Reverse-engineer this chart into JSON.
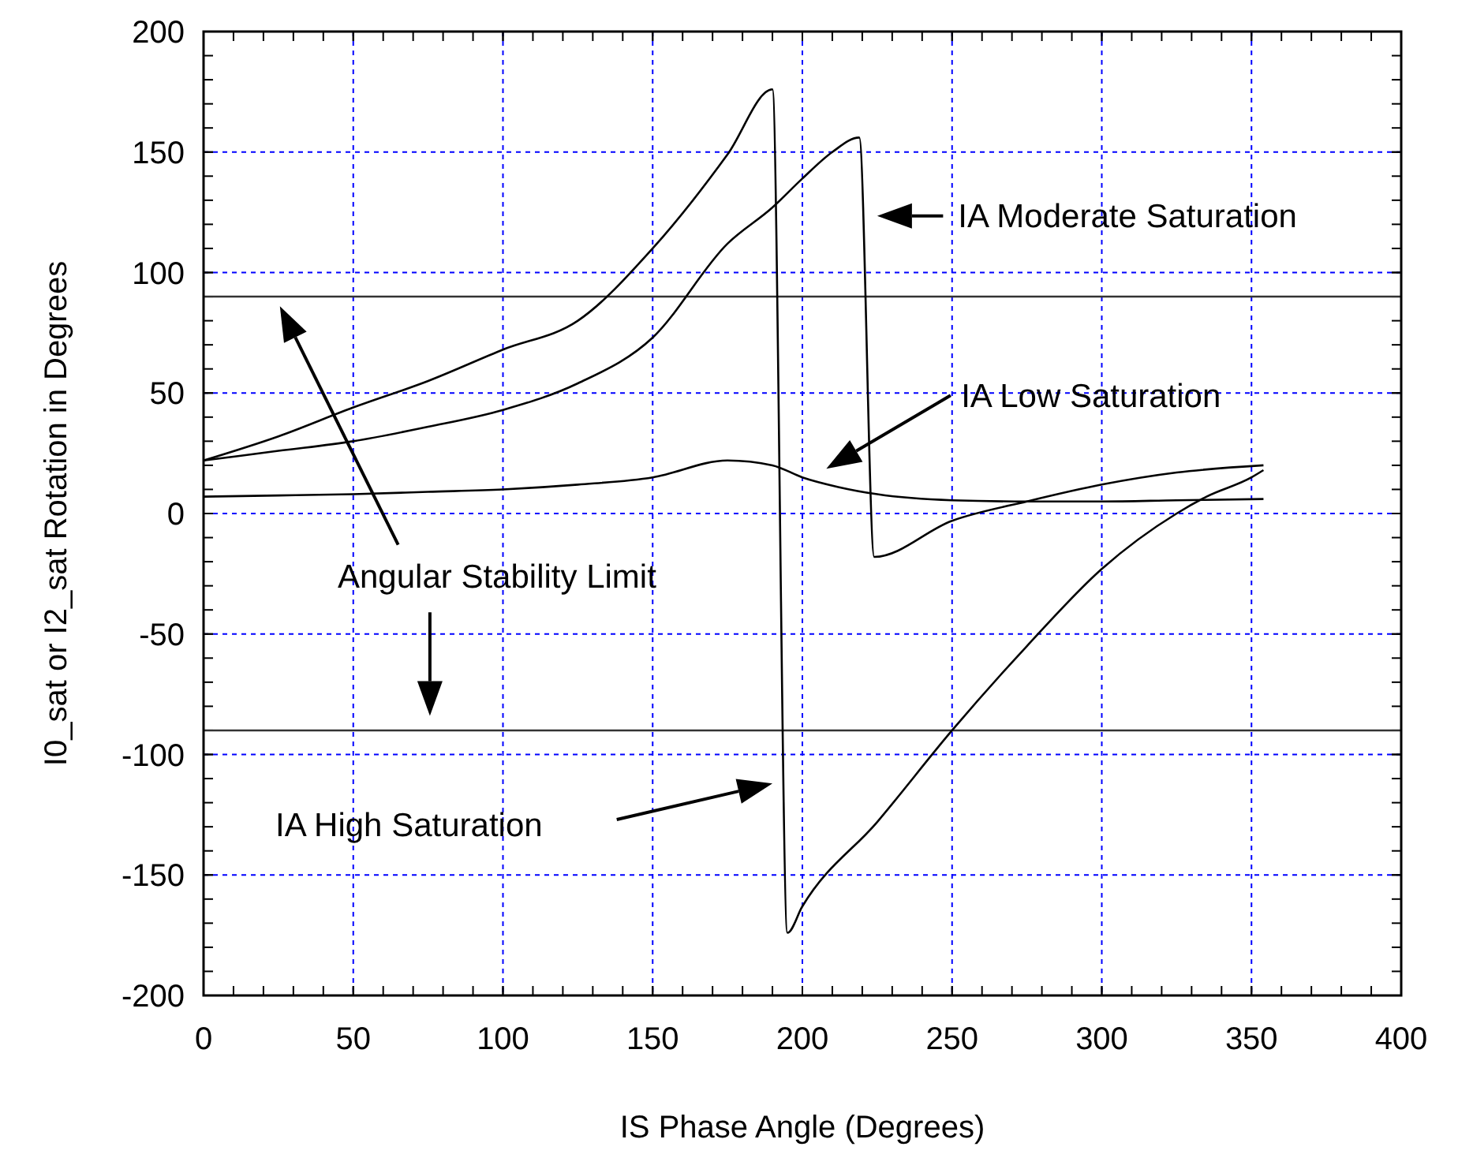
{
  "chart_data": {
    "type": "line",
    "xlabel": "IS Phase Angle (Degrees)",
    "ylabel": "I0_sat or I2_sat Rotation in Degrees",
    "xlim": [
      0,
      400
    ],
    "xticks": [
      0,
      50,
      100,
      150,
      200,
      250,
      300,
      350,
      400
    ],
    "ylim": [
      -200,
      200
    ],
    "yticks": [
      -200,
      -150,
      -100,
      -50,
      0,
      50,
      100,
      150,
      200
    ],
    "grid": true,
    "series": [
      {
        "color": "#000000",
        "x": [
          0,
          25,
          50,
          75,
          100,
          125,
          150,
          175,
          190,
          195,
          200,
          225,
          250,
          275,
          300,
          325,
          335,
          350,
          354
        ],
        "values": [
          22,
          32,
          44,
          55,
          68,
          80,
          110,
          149,
          176,
          -174,
          -163,
          -128,
          -90,
          -55,
          -23,
          0,
          7,
          15,
          18
        ]
      },
      {
        "color": "#000000",
        "x": [
          0,
          25,
          50,
          75,
          100,
          125,
          150,
          175,
          190,
          200,
          210,
          219,
          224,
          250,
          275,
          300,
          325,
          354
        ],
        "values": [
          22,
          26,
          30,
          36,
          43,
          54,
          73,
          112,
          127,
          139,
          150,
          156,
          -18,
          -3,
          5,
          12,
          17,
          20
        ]
      },
      {
        "color": "#000000",
        "x": [
          0,
          25,
          50,
          75,
          100,
          125,
          150,
          175,
          190,
          200,
          212,
          225,
          250,
          275,
          300,
          325,
          354
        ],
        "values": [
          7,
          7.5,
          8,
          9,
          10,
          12,
          15,
          22,
          20,
          15,
          11,
          8,
          5.5,
          5,
          5,
          5.5,
          6
        ]
      }
    ],
    "ref_lines": [
      {
        "axis": "y",
        "value": 90,
        "color": "#333333"
      },
      {
        "axis": "y",
        "value": -90,
        "color": "#333333"
      }
    ],
    "annotations": [
      "Angular Stability Limit",
      "IA High Saturation",
      "IA Moderate Saturation",
      "IA Low Saturation"
    ]
  }
}
